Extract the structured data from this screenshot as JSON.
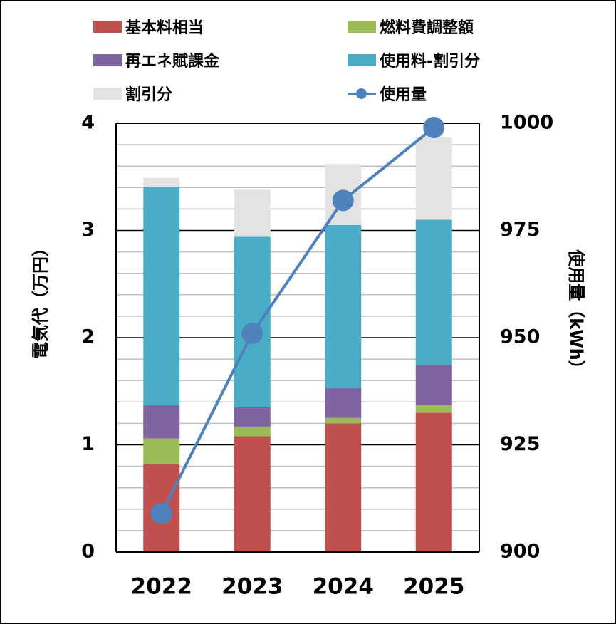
{
  "chart_data": {
    "type": "bar",
    "stacked": true,
    "categories": [
      "2022",
      "2023",
      "2024",
      "2025"
    ],
    "series": [
      {
        "name": "基本料相当",
        "color": "#c0504d",
        "values": [
          0.82,
          1.08,
          1.2,
          1.3
        ]
      },
      {
        "name": "燃料費調整額",
        "color": "#9bbb59",
        "values": [
          0.24,
          0.09,
          0.05,
          0.07
        ]
      },
      {
        "name": "再エネ賦課金",
        "color": "#8064a2",
        "values": [
          0.31,
          0.18,
          0.28,
          0.38
        ]
      },
      {
        "name": "使用料-割引分",
        "color": "#4bacc6",
        "values": [
          2.04,
          1.59,
          1.52,
          1.35
        ]
      },
      {
        "name": "割引分",
        "color": "#e3e3e3",
        "values": [
          0.08,
          0.44,
          0.57,
          0.77
        ]
      }
    ],
    "line_series": {
      "name": "使用量",
      "color": "#4f81bd",
      "type": "line",
      "axis": "right",
      "values": [
        909,
        951,
        982,
        999
      ]
    },
    "ylabel": "電気代（万円）",
    "y2label": "使用量（kWh）",
    "ylim": [
      0,
      4
    ],
    "y2lim": [
      900,
      1000
    ],
    "yticks": [
      "0",
      "1",
      "2",
      "3",
      "4"
    ],
    "y2ticks": [
      "900",
      "925",
      "950",
      "975",
      "1000"
    ],
    "ytick_values": [
      0,
      1,
      2,
      3,
      4
    ],
    "y2tick_values": [
      900,
      925,
      950,
      975,
      1000
    ],
    "minor_step": 0.2,
    "grid": true,
    "legend_position": "top"
  },
  "legend": [
    {
      "label": "基本料相当",
      "kind": "box",
      "color": "#c0504d"
    },
    {
      "label": "燃料費調整額",
      "kind": "box",
      "color": "#9bbb59"
    },
    {
      "label": "再エネ賦課金",
      "kind": "box",
      "color": "#8064a2"
    },
    {
      "label": "使用料-割引分",
      "kind": "box",
      "color": "#4bacc6"
    },
    {
      "label": "割引分",
      "kind": "box",
      "color": "#e3e3e3"
    },
    {
      "label": "使用量",
      "kind": "line",
      "color": "#4f81bd"
    }
  ]
}
